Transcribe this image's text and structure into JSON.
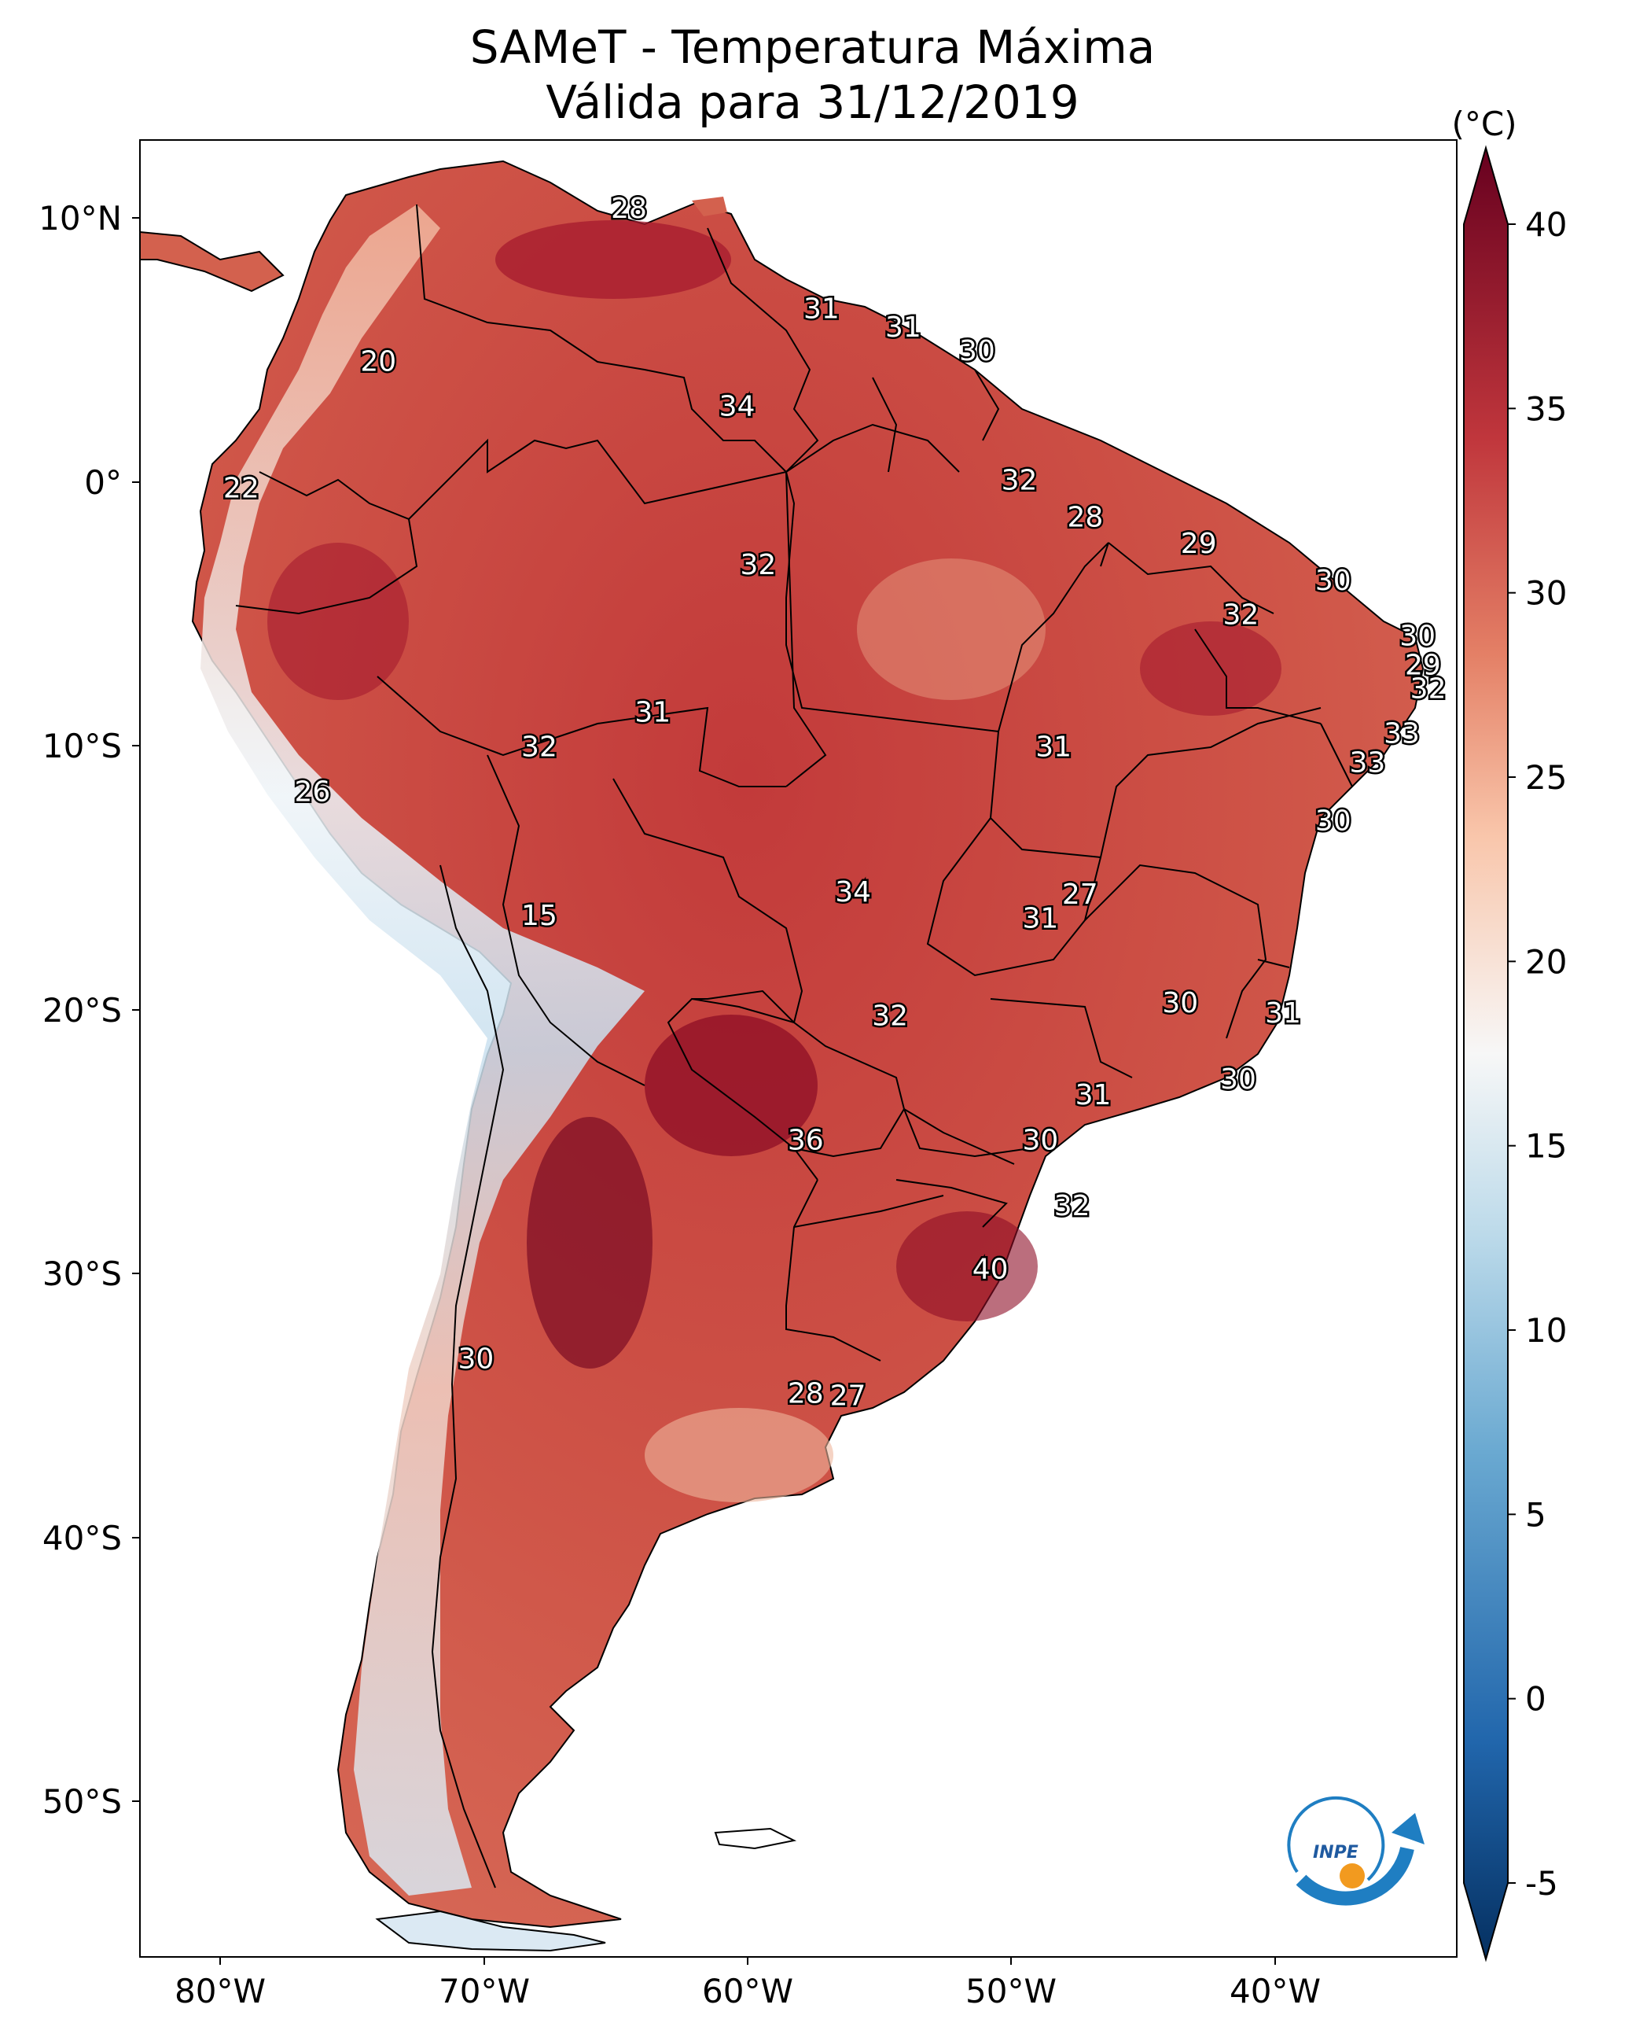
{
  "title": {
    "line1": "SAMeT - Temperatura Máxima",
    "line2": "Válida para 31/12/2019"
  },
  "axes": {
    "lon_ticks": [
      "80°W",
      "70°W",
      "60°W",
      "50°W",
      "40°W"
    ],
    "lat_ticks": [
      "10°N",
      "0°",
      "10°S",
      "20°S",
      "30°S",
      "40°S",
      "50°S"
    ]
  },
  "colorbar": {
    "unit": "(°C)",
    "ticks": [
      "40",
      "35",
      "30",
      "25",
      "20",
      "15",
      "10",
      "5",
      "0",
      "-5"
    ],
    "colors": {
      "hot": "#67001f",
      "warm": "#c0363c",
      "mild": "#f4a582",
      "neutral": "#f7f7f7",
      "cool": "#92c5de",
      "cold": "#053061"
    }
  },
  "isotherm_labels": [
    {
      "value": "28",
      "lon": -64.5,
      "lat": 10.3
    },
    {
      "value": "20",
      "lon": -74.0,
      "lat": 4.5
    },
    {
      "value": "22",
      "lon": -79.2,
      "lat": -0.3
    },
    {
      "value": "26",
      "lon": -76.5,
      "lat": -11.8
    },
    {
      "value": "15",
      "lon": -67.9,
      "lat": -16.5
    },
    {
      "value": "30",
      "lon": -70.3,
      "lat": -33.3
    },
    {
      "value": "31",
      "lon": -57.2,
      "lat": 6.5
    },
    {
      "value": "31",
      "lon": -54.1,
      "lat": 5.8
    },
    {
      "value": "30",
      "lon": -51.3,
      "lat": 4.9
    },
    {
      "value": "34",
      "lon": -60.4,
      "lat": 2.8
    },
    {
      "value": "32",
      "lon": -49.7,
      "lat": 0.0
    },
    {
      "value": "28",
      "lon": -47.2,
      "lat": -1.4
    },
    {
      "value": "29",
      "lon": -42.9,
      "lat": -2.4
    },
    {
      "value": "30",
      "lon": -37.8,
      "lat": -3.8
    },
    {
      "value": "32",
      "lon": -41.3,
      "lat": -5.1
    },
    {
      "value": "30",
      "lon": -34.6,
      "lat": -5.9
    },
    {
      "value": "29",
      "lon": -34.4,
      "lat": -7.0
    },
    {
      "value": "32",
      "lon": -34.2,
      "lat": -7.9
    },
    {
      "value": "33",
      "lon": -35.2,
      "lat": -9.6
    },
    {
      "value": "33",
      "lon": -36.5,
      "lat": -10.7
    },
    {
      "value": "30",
      "lon": -37.8,
      "lat": -12.9
    },
    {
      "value": "32",
      "lon": -59.6,
      "lat": -3.2
    },
    {
      "value": "31",
      "lon": -63.6,
      "lat": -8.8
    },
    {
      "value": "32",
      "lon": -67.9,
      "lat": -10.1
    },
    {
      "value": "31",
      "lon": -48.4,
      "lat": -10.1
    },
    {
      "value": "34",
      "lon": -56.0,
      "lat": -15.6
    },
    {
      "value": "27",
      "lon": -47.4,
      "lat": -15.7
    },
    {
      "value": "31",
      "lon": -48.9,
      "lat": -16.6
    },
    {
      "value": "32",
      "lon": -54.6,
      "lat": -20.3
    },
    {
      "value": "30",
      "lon": -43.6,
      "lat": -19.8
    },
    {
      "value": "31",
      "lon": -39.7,
      "lat": -20.2
    },
    {
      "value": "30",
      "lon": -41.4,
      "lat": -22.7
    },
    {
      "value": "31",
      "lon": -46.9,
      "lat": -23.3
    },
    {
      "value": "36",
      "lon": -57.8,
      "lat": -25.0
    },
    {
      "value": "30",
      "lon": -48.9,
      "lat": -25.0
    },
    {
      "value": "32",
      "lon": -47.7,
      "lat": -27.5
    },
    {
      "value": "40",
      "lon": -50.8,
      "lat": -29.9
    },
    {
      "value": "28",
      "lon": -57.8,
      "lat": -34.6
    },
    {
      "value": "27",
      "lon": -56.2,
      "lat": -34.7
    }
  ],
  "logo": {
    "text": "INPE",
    "colors": {
      "arc": "#1f7ec2",
      "dot": "#f29a1f"
    }
  }
}
